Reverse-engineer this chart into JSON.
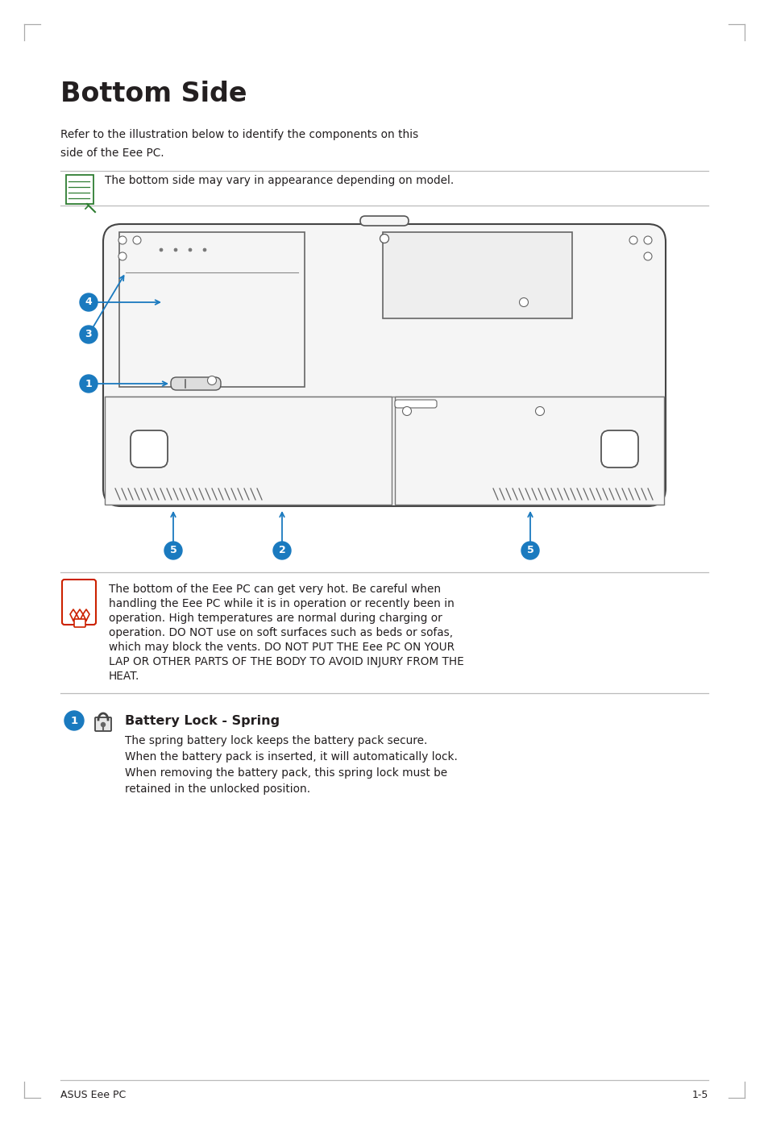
{
  "title": "Bottom Side",
  "subtitle_line1": "Refer to the illustration below to identify the components on this",
  "subtitle_line2": "side of the Eee PC.",
  "note_text": "The bottom side may vary in appearance depending on model.",
  "warning_text_lines": [
    "The bottom of the Eee PC can get very hot. Be careful when",
    "handling the Eee PC while it is in operation or recently been in",
    "operation. High temperatures are normal during charging or",
    "operation. DO NOT use on soft surfaces such as beds or sofas,",
    "which may block the vents. DO NOT PUT THE Eee PC ON YOUR",
    "LAP OR OTHER PARTS OF THE BODY TO AVOID INJURY FROM THE",
    "HEAT."
  ],
  "section_title": "Battery Lock - Spring",
  "section_text_lines": [
    "The spring battery lock keeps the battery pack secure.",
    "When the battery pack is inserted, it will automatically lock.",
    "When removing the battery pack, this spring lock must be",
    "retained in the unlocked position."
  ],
  "footer_left": "ASUS Eee PC",
  "footer_right": "1-5",
  "bg_color": "#ffffff",
  "text_color": "#231f20",
  "blue_color": "#1a7abf",
  "line_color": "#bbbbbb",
  "green_color": "#2e7d32",
  "red_color": "#cc2200",
  "title_fontsize": 24,
  "body_fontsize": 9.8,
  "note_fontsize": 9.8,
  "section_title_fontsize": 11.5,
  "footer_fontsize": 9.0
}
